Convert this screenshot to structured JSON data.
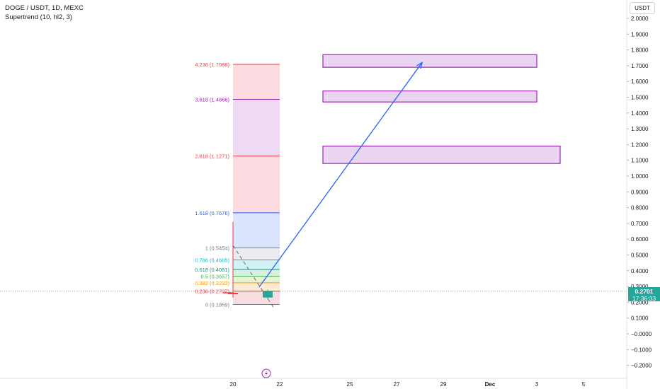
{
  "header": {
    "symbol_line": "DOGE / USDT, 1D, MEXC",
    "indicator_line": "Supertrend (10, hl2, 3)"
  },
  "price_scale": {
    "currency": "USDT",
    "current_price": "0.2701",
    "countdown": "17:36:33"
  },
  "colors": {
    "up": "#26a69a",
    "fib_red": "#f23645",
    "fib_purple": "#9c27b0",
    "fib_blue": "#2962ff",
    "fib_cyan": "#00bcd4",
    "fib_green": "#089981",
    "fib_orange": "#ff9800",
    "box_fill": "#e1c6ec",
    "box_border": "#9c27b0",
    "arrow": "#2962ff"
  },
  "icons": {
    "event_marker": "lightning-icon"
  },
  "chart_data": {
    "type": "line",
    "y_axis": {
      "range": [
        -0.22,
        2.08
      ],
      "ticks": [
        "2.0000",
        "1.9000",
        "1.8000",
        "1.7000",
        "1.6000",
        "1.5000",
        "1.4000",
        "1.3000",
        "1.2000",
        "1.1000",
        "1.0000",
        "0.9000",
        "0.8000",
        "0.7000",
        "0.6000",
        "0.5000",
        "0.4000",
        "0.3000",
        "0.2000",
        "0.1000",
        "−0.0000",
        "−0.1000",
        "−0.2000"
      ]
    },
    "x_axis": {
      "ticks": [
        {
          "label": "20",
          "day": 20
        },
        {
          "label": "22",
          "day": 22
        },
        {
          "label": "25",
          "day": 25
        },
        {
          "label": "27",
          "day": 27
        },
        {
          "label": "29",
          "day": 29
        },
        {
          "label": "Dec",
          "day": 31
        },
        {
          "label": "3",
          "day": 33
        },
        {
          "label": "5",
          "day": 35
        }
      ]
    },
    "fib_extension": {
      "start_day": 20,
      "end_day": 22,
      "levels": [
        {
          "label": "0 (0.1859)",
          "ratio": 0,
          "price": 0.1859,
          "color": "#787b86",
          "fill": "#f9d7da"
        },
        {
          "label": "0.236 (0.2707)",
          "ratio": 0.236,
          "price": 0.2707,
          "color": "#f23645",
          "fill": "#fde9cc"
        },
        {
          "label": "0.382 (0.3232)",
          "ratio": 0.382,
          "price": 0.3232,
          "color": "#ff9800",
          "fill": "#e4f0cc"
        },
        {
          "label": "0.5 (0.3657)",
          "ratio": 0.5,
          "price": 0.3657,
          "color": "#4caf50",
          "fill": "#d5ebdf"
        },
        {
          "label": "0.618 (0.4081)",
          "ratio": 0.618,
          "price": 0.4081,
          "color": "#089981",
          "fill": "#ccf0f5"
        },
        {
          "label": "0.786 (0.4685)",
          "ratio": 0.786,
          "price": 0.4685,
          "color": "#00bcd4",
          "fill": "#e8e9ec"
        },
        {
          "label": "1 (0.5454)",
          "ratio": 1,
          "price": 0.5454,
          "color": "#787b86",
          "fill": "#d4e0fd"
        },
        {
          "label": "1.618 (0.7676)",
          "ratio": 1.618,
          "price": 0.7676,
          "color": "#2962ff",
          "fill": "#fcd6da"
        },
        {
          "label": "2.618 (1.1271)",
          "ratio": 2.618,
          "price": 1.1271,
          "color": "#f23645",
          "fill": "#ebd4f0"
        },
        {
          "label": "3.618 (1.4866)",
          "ratio": 3.618,
          "price": 1.4866,
          "color": "#9c27b0",
          "fill": "#fcd6da"
        },
        {
          "label": "4.236 (1.7088)",
          "ratio": 4.236,
          "price": 1.7088,
          "color": "#f23645",
          "fill": null
        }
      ]
    },
    "target_boxes": [
      {
        "start_day": 24,
        "end_day": 33,
        "top": 1.77,
        "bottom": 1.69
      },
      {
        "start_day": 24,
        "end_day": 33,
        "top": 1.54,
        "bottom": 1.47
      },
      {
        "start_day": 24,
        "end_day": 34,
        "top": 1.19,
        "bottom": 1.08
      }
    ],
    "projection_arrow": {
      "from_day": 21,
      "from_price": 0.27,
      "to_day": 28,
      "to_price": 1.72
    },
    "dashed_trend": {
      "from_day": 20,
      "from_price": 0.56,
      "to_day": 22,
      "to_price": 0.18
    },
    "candles": [
      {
        "day": 20,
        "open": 0.26,
        "high": 0.71,
        "low": 0.23,
        "close": 0.26,
        "color": "#f23645"
      },
      {
        "day": 21,
        "open": 0.23,
        "high": 0.28,
        "low": 0.22,
        "close": 0.27,
        "color": "#26a69a"
      }
    ],
    "current_price": 0.2701,
    "event_marker_day": 21
  }
}
